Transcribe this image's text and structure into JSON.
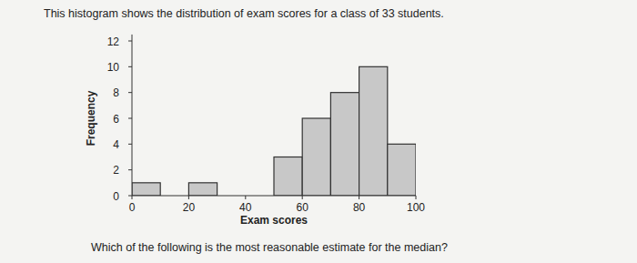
{
  "intro": "This histogram shows the distribution of exam scores for a class of 33 students.",
  "question": "Which of the following is the most reasonable estimate for the median?",
  "chart_data": {
    "type": "histogram",
    "bins": [
      0,
      10,
      20,
      30,
      40,
      50,
      60,
      70,
      80,
      90,
      100
    ],
    "values": [
      1,
      0,
      1,
      0,
      0,
      3,
      6,
      8,
      10,
      4
    ],
    "color": "#c8c8c8",
    "xlabel": "Exam scores",
    "ylabel": "Frequency",
    "xlim": [
      0,
      100
    ],
    "ylim": [
      0,
      12.5
    ],
    "xticks": [
      0,
      20,
      40,
      60,
      80,
      100
    ],
    "yticks": [
      0,
      2,
      4,
      6,
      8,
      10,
      12
    ],
    "grid": false
  }
}
